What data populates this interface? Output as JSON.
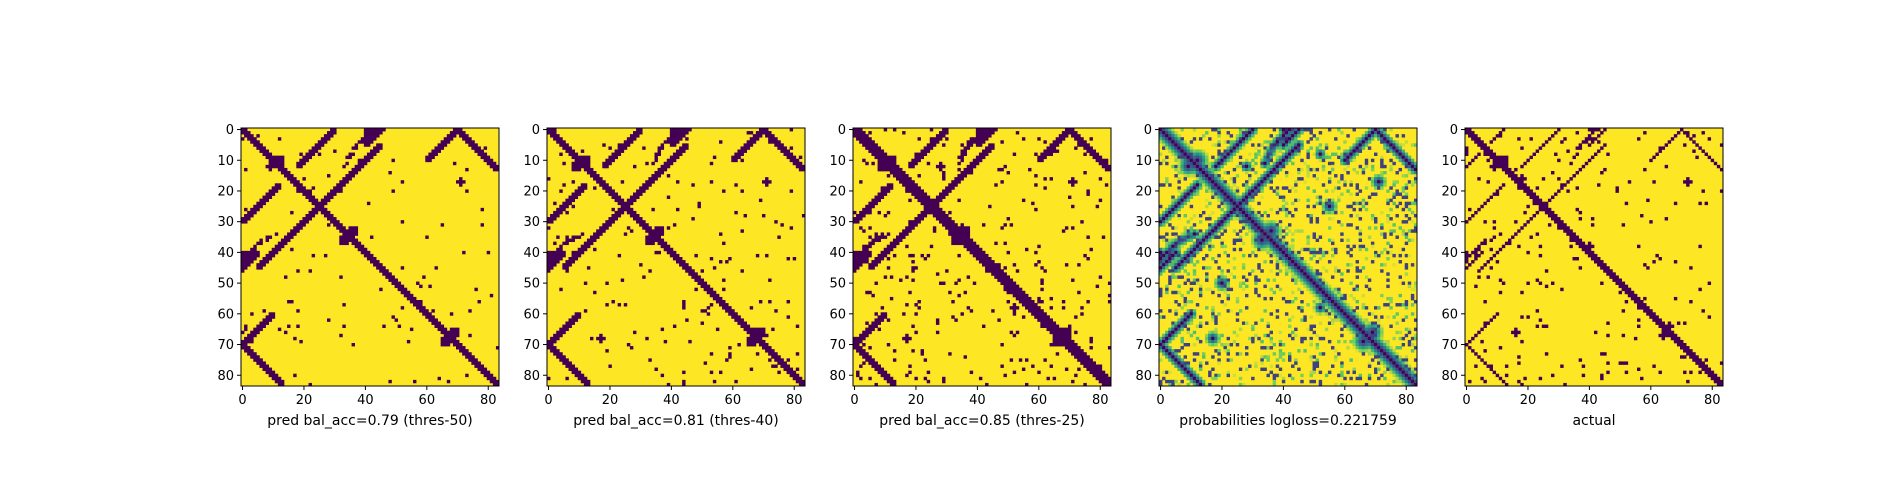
{
  "chart_data": [
    {
      "type": "heatmap",
      "title": "",
      "xlabel": "pred bal_acc=0.79 (thres-50)",
      "ylabel": "",
      "grid": false,
      "xlim": [
        0,
        84
      ],
      "ylim": [
        84,
        0
      ],
      "xticks": [
        "0",
        "20",
        "40",
        "60",
        "80"
      ],
      "yticks": [
        "0",
        "10",
        "20",
        "30",
        "40",
        "50",
        "60",
        "70",
        "80"
      ],
      "colors": {
        "low": "#440154",
        "high": "#fde725"
      },
      "structure": {
        "band_halfwidth": 1.6,
        "blobs": [
          [
            10,
            12,
            2.5
          ],
          [
            12,
            9,
            2.0
          ],
          [
            33,
            36,
            2.2
          ],
          [
            36,
            33,
            2.2
          ],
          [
            66,
            69,
            2.2
          ],
          [
            69,
            66,
            2.2
          ],
          [
            17,
            71,
            1.3
          ],
          [
            68,
            17,
            1.2
          ],
          [
            58,
            52,
            1.0
          ]
        ],
        "lines": [
          [
            5,
            40,
            50,
            1.0
          ],
          [
            18,
            30,
            30,
            0.9
          ],
          [
            74,
            80,
            70,
            0.9
          ],
          [
            40,
            46,
            45,
            0.9
          ],
          [
            40,
            45,
            42,
            0.9
          ],
          [
            60,
            72,
            70,
            0.9
          ]
        ],
        "arcs": [
          [
            34,
            42,
            45,
            0.9,
            -3
          ],
          [
            40,
            48,
            40,
            0.9,
            3
          ]
        ],
        "noise_threshold": 0.985
      }
    },
    {
      "type": "heatmap",
      "title": "",
      "xlabel": "pred bal_acc=0.81 (thres-40)",
      "ylabel": "",
      "grid": false,
      "xlim": [
        0,
        84
      ],
      "ylim": [
        84,
        0
      ],
      "xticks": [
        "0",
        "20",
        "40",
        "60",
        "80"
      ],
      "yticks": [
        "0",
        "10",
        "20",
        "30",
        "40",
        "50",
        "60",
        "70",
        "80"
      ],
      "colors": {
        "low": "#440154",
        "high": "#fde725"
      },
      "structure": {
        "band_halfwidth": 1.9,
        "blobs": [
          [
            10,
            12,
            2.7
          ],
          [
            12,
            9,
            2.2
          ],
          [
            33,
            36,
            2.4
          ],
          [
            36,
            33,
            2.4
          ],
          [
            66,
            69,
            2.4
          ],
          [
            69,
            66,
            2.4
          ],
          [
            17,
            71,
            1.5
          ],
          [
            68,
            17,
            1.4
          ],
          [
            58,
            52,
            1.2
          ],
          [
            12,
            28,
            1.0
          ]
        ],
        "lines": [
          [
            5,
            40,
            50,
            1.1
          ],
          [
            18,
            30,
            30,
            1.0
          ],
          [
            74,
            80,
            70,
            1.0
          ],
          [
            40,
            46,
            45,
            1.0
          ],
          [
            40,
            45,
            42,
            1.0
          ],
          [
            60,
            72,
            70,
            1.0
          ]
        ],
        "arcs": [
          [
            34,
            42,
            45,
            1.0,
            -3
          ],
          [
            40,
            48,
            40,
            1.0,
            3
          ]
        ],
        "noise_threshold": 0.975
      }
    },
    {
      "type": "heatmap",
      "title": "",
      "xlabel": "pred bal_acc=0.85 (thres-25)",
      "ylabel": "",
      "grid": false,
      "xlim": [
        0,
        84
      ],
      "ylim": [
        84,
        0
      ],
      "xticks": [
        "0",
        "20",
        "40",
        "60",
        "80"
      ],
      "yticks": [
        "0",
        "10",
        "20",
        "30",
        "40",
        "50",
        "60",
        "70",
        "80"
      ],
      "colors": {
        "low": "#440154",
        "high": "#fde725"
      },
      "structure": {
        "band_halfwidth": 2.3,
        "blobs": [
          [
            10,
            12,
            3.0
          ],
          [
            12,
            9,
            2.5
          ],
          [
            33,
            36,
            2.7
          ],
          [
            36,
            33,
            2.7
          ],
          [
            66,
            69,
            2.7
          ],
          [
            69,
            66,
            2.7
          ],
          [
            17,
            71,
            1.8
          ],
          [
            68,
            17,
            1.7
          ],
          [
            58,
            52,
            1.4
          ],
          [
            12,
            28,
            1.3
          ],
          [
            8,
            52,
            1.2
          ]
        ],
        "lines": [
          [
            5,
            40,
            50,
            1.3
          ],
          [
            18,
            30,
            30,
            1.2
          ],
          [
            74,
            80,
            70,
            1.2
          ],
          [
            40,
            46,
            45,
            1.2
          ],
          [
            40,
            45,
            42,
            1.2
          ],
          [
            60,
            72,
            70,
            1.2
          ]
        ],
        "arcs": [
          [
            34,
            42,
            45,
            1.2,
            -3
          ],
          [
            40,
            48,
            40,
            1.2,
            3
          ]
        ],
        "noise_threshold": 0.955
      }
    },
    {
      "type": "heatmap",
      "title": "",
      "xlabel": "probabilities logloss=0.221759",
      "ylabel": "",
      "grid": false,
      "xlim": [
        0,
        84
      ],
      "ylim": [
        84,
        0
      ],
      "xticks": [
        "0",
        "20",
        "40",
        "60",
        "80"
      ],
      "yticks": [
        "0",
        "10",
        "20",
        "30",
        "40",
        "50",
        "60",
        "70",
        "80"
      ],
      "colors": {
        "low": "#440154",
        "high": "#fde725"
      },
      "continuous": true,
      "structure": {
        "band_halfwidth": 2.6,
        "blobs": [
          [
            10,
            12,
            3.2
          ],
          [
            12,
            9,
            2.7
          ],
          [
            33,
            36,
            3.0
          ],
          [
            36,
            33,
            3.0
          ],
          [
            66,
            69,
            3.0
          ],
          [
            69,
            66,
            3.0
          ],
          [
            17,
            71,
            2.0
          ],
          [
            68,
            17,
            1.9
          ],
          [
            58,
            52,
            1.6
          ],
          [
            12,
            28,
            1.5
          ],
          [
            8,
            52,
            1.4
          ],
          [
            50,
            20,
            2.0
          ],
          [
            25,
            55,
            2.0
          ]
        ],
        "lines": [
          [
            5,
            40,
            50,
            1.5
          ],
          [
            18,
            30,
            30,
            1.4
          ],
          [
            74,
            80,
            70,
            1.4
          ],
          [
            40,
            46,
            45,
            1.4
          ],
          [
            40,
            45,
            42,
            1.4
          ],
          [
            60,
            72,
            70,
            1.4
          ]
        ],
        "arcs": [
          [
            34,
            42,
            45,
            1.4,
            -3
          ],
          [
            40,
            48,
            40,
            1.4,
            3
          ]
        ],
        "noise_threshold": 0.9
      }
    },
    {
      "type": "heatmap",
      "title": "",
      "xlabel": "actual",
      "ylabel": "",
      "grid": false,
      "xlim": [
        0,
        84
      ],
      "ylim": [
        84,
        0
      ],
      "xticks": [
        "0",
        "20",
        "40",
        "60",
        "80"
      ],
      "yticks": [
        "0",
        "10",
        "20",
        "30",
        "40",
        "50",
        "60",
        "70",
        "80"
      ],
      "colors": {
        "low": "#440154",
        "high": "#fde725"
      },
      "structure": {
        "band_halfwidth": 1.3,
        "blobs": [
          [
            10,
            12,
            2.3
          ],
          [
            12,
            9,
            1.8
          ],
          [
            16,
            18,
            1.5
          ],
          [
            38,
            40,
            1.6
          ],
          [
            64,
            66,
            1.8
          ],
          [
            67,
            64,
            1.6
          ],
          [
            17,
            72,
            1.5
          ],
          [
            66,
            16,
            1.3
          ],
          [
            56,
            52,
            1.2
          ],
          [
            10,
            30,
            1.0
          ],
          [
            18,
            43,
            1.0
          ],
          [
            50,
            20,
            1.0
          ],
          [
            24,
            52,
            1.0
          ],
          [
            77,
            8,
            1.2
          ]
        ],
        "lines": [
          [
            5,
            40,
            50,
            0.8
          ],
          [
            18,
            30,
            30,
            0.7
          ],
          [
            74,
            80,
            70,
            0.7
          ],
          [
            40,
            46,
            45,
            0.7
          ],
          [
            40,
            45,
            42,
            0.7
          ],
          [
            60,
            72,
            70,
            0.7
          ],
          [
            8,
            22,
            12,
            0.7
          ]
        ],
        "arcs": [
          [
            34,
            42,
            45,
            0.8,
            -3
          ],
          [
            40,
            48,
            40,
            0.8,
            3
          ]
        ],
        "noise_threshold": 0.972
      }
    }
  ]
}
